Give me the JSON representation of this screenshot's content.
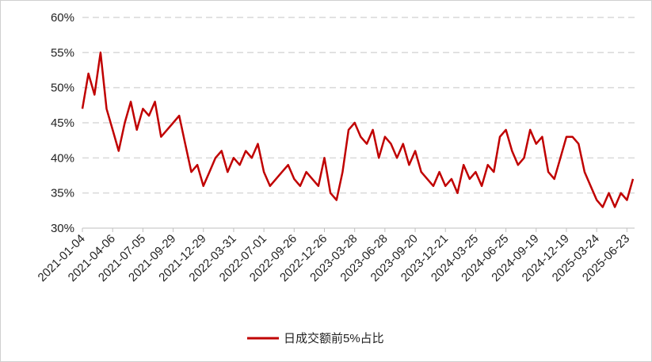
{
  "chart_data": {
    "type": "line",
    "categories": [
      "2021-01-04",
      null,
      null,
      null,
      null,
      "2021-04-06",
      null,
      null,
      null,
      null,
      "2021-07-05",
      null,
      null,
      null,
      null,
      "2021-09-29",
      null,
      null,
      null,
      null,
      "2021-12-29",
      null,
      null,
      null,
      null,
      "2022-03-31",
      null,
      null,
      null,
      null,
      "2022-07-01",
      null,
      null,
      null,
      null,
      "2022-09-26",
      null,
      null,
      null,
      null,
      "2022-12-26",
      null,
      null,
      null,
      null,
      "2023-03-28",
      null,
      null,
      null,
      null,
      "2023-06-28",
      null,
      null,
      null,
      null,
      "2023-09-20",
      null,
      null,
      null,
      null,
      "2023-12-21",
      null,
      null,
      null,
      null,
      "2024-03-25",
      null,
      null,
      null,
      null,
      "2024-06-25",
      null,
      null,
      null,
      null,
      "2024-09-19",
      null,
      null,
      null,
      null,
      "2024-12-19",
      null,
      null,
      null,
      null,
      "2025-03-24",
      null,
      null,
      null,
      null,
      "2025-06-23",
      null
    ],
    "series": [
      {
        "name": "日成交额前5%占比",
        "color": "#c00000",
        "values": [
          47,
          52,
          49,
          55,
          47,
          44,
          41,
          45,
          48,
          44,
          47,
          46,
          48,
          43,
          44,
          45,
          46,
          42,
          38,
          39,
          36,
          38,
          40,
          41,
          38,
          40,
          39,
          41,
          40,
          42,
          38,
          36,
          37,
          38,
          39,
          37,
          36,
          38,
          37,
          36,
          40,
          35,
          34,
          38,
          44,
          45,
          43,
          42,
          44,
          40,
          43,
          42,
          40,
          42,
          39,
          41,
          38,
          37,
          36,
          38,
          36,
          37,
          35,
          39,
          37,
          38,
          36,
          39,
          38,
          43,
          44,
          41,
          39,
          40,
          44,
          42,
          43,
          38,
          37,
          40,
          43,
          43,
          42,
          38,
          36,
          34,
          33,
          35,
          33,
          35,
          34,
          37
        ]
      }
    ],
    "ylim": [
      30,
      60
    ],
    "yticks": [
      {
        "value": 30,
        "label": "30%"
      },
      {
        "value": 35,
        "label": "35%"
      },
      {
        "value": 40,
        "label": "40%"
      },
      {
        "value": 45,
        "label": "45%"
      },
      {
        "value": 50,
        "label": "50%"
      },
      {
        "value": 55,
        "label": "55%"
      },
      {
        "value": 60,
        "label": "60%"
      }
    ],
    "grid": true,
    "legend": "bottom"
  }
}
